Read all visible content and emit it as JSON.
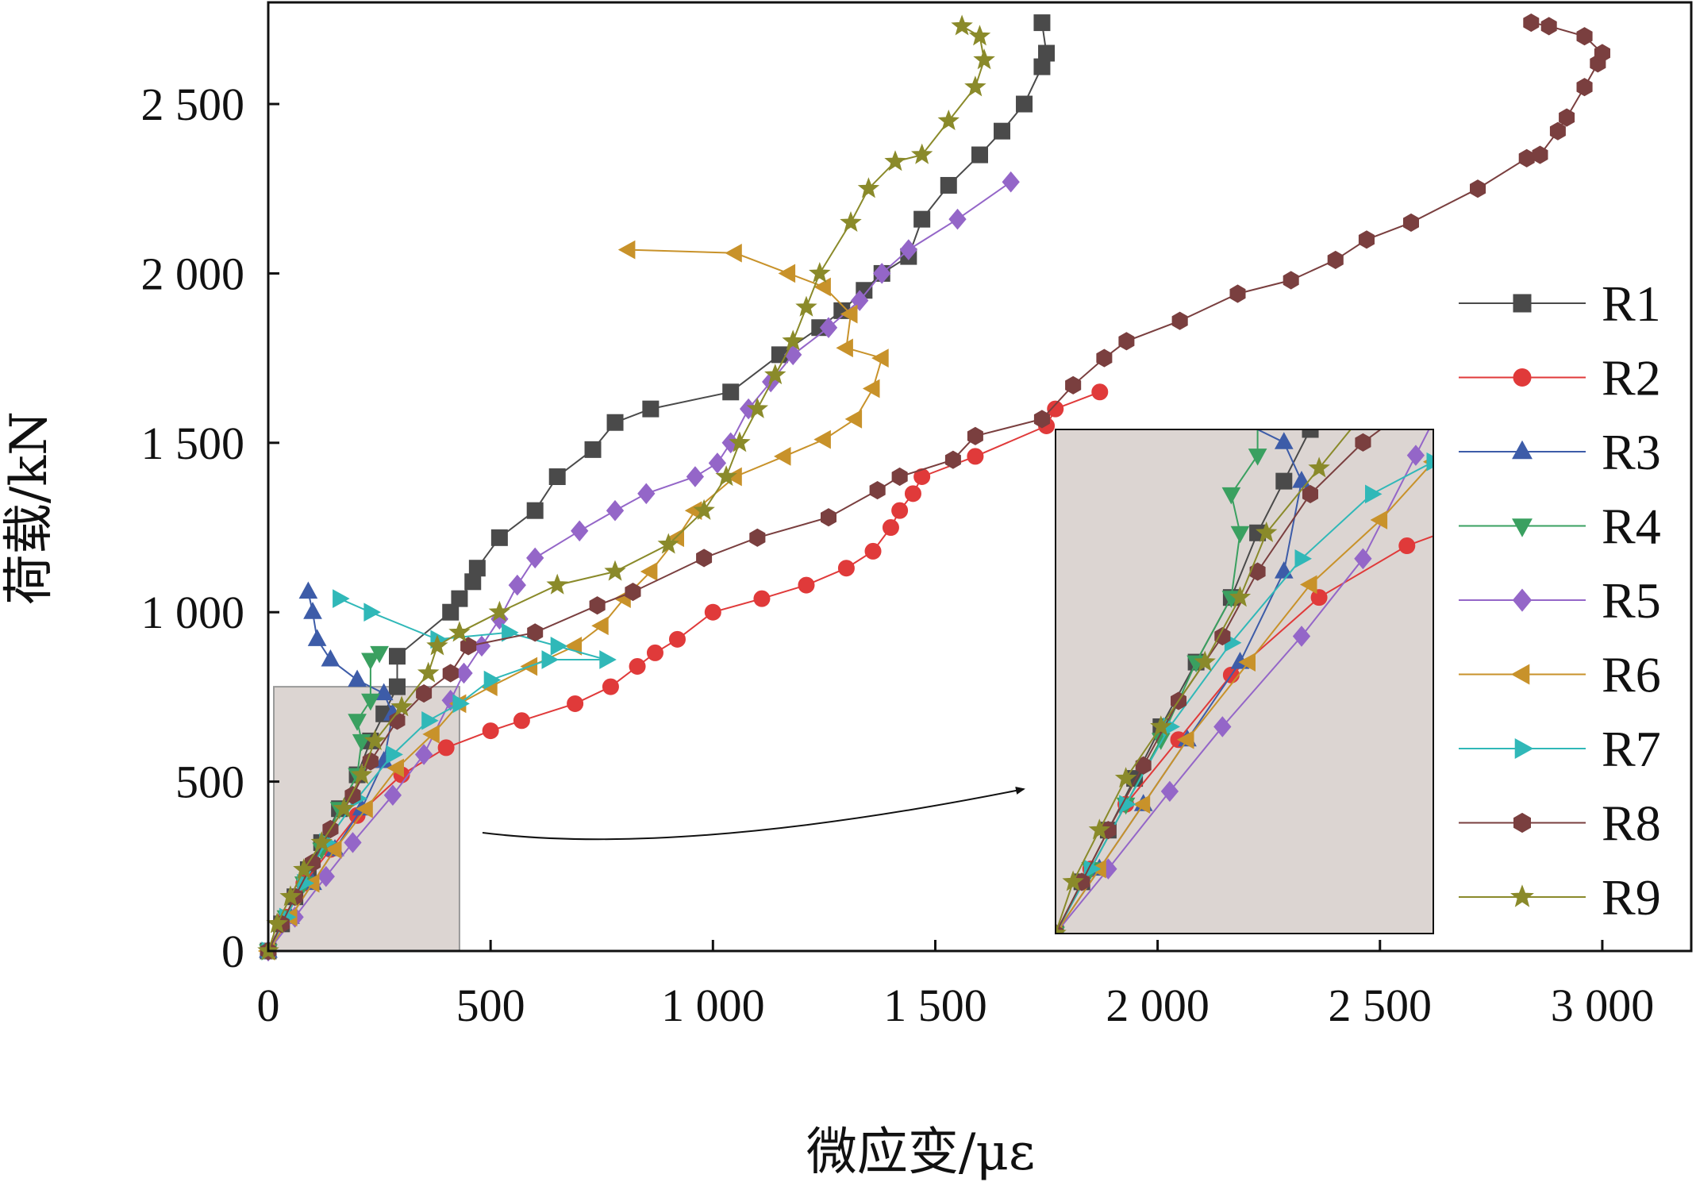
{
  "chart_data": {
    "type": "line",
    "title": "",
    "xlabel": "微应变/με",
    "ylabel": "荷载/kN",
    "xlim": [
      0,
      3200
    ],
    "ylim": [
      0,
      2800
    ],
    "xticks": [
      0,
      500,
      1000,
      1500,
      2000,
      2500,
      3000
    ],
    "xtick_labels": [
      "0",
      "500",
      "1 000",
      "1 500",
      "2 000",
      "2 500",
      "3 000"
    ],
    "yticks": [
      0,
      500,
      1000,
      1500,
      2000,
      2500
    ],
    "ytick_labels": [
      "0",
      "500",
      "1 000",
      "1 500",
      "2 000",
      "2 500"
    ],
    "grid": false,
    "legend_position": "right",
    "inset": {
      "type": "zoom",
      "source_xlim": [
        0,
        430
      ],
      "source_ylim": [
        0,
        780
      ]
    },
    "series": [
      {
        "name": "R1",
        "color": "#4a4a4a",
        "marker": "square",
        "points": [
          [
            0,
            0
          ],
          [
            30,
            80
          ],
          [
            60,
            160
          ],
          [
            90,
            240
          ],
          [
            120,
            320
          ],
          [
            160,
            420
          ],
          [
            200,
            520
          ],
          [
            230,
            620
          ],
          [
            260,
            700
          ],
          [
            290,
            780
          ],
          [
            290,
            870
          ],
          [
            410,
            1000
          ],
          [
            430,
            1040
          ],
          [
            460,
            1090
          ],
          [
            470,
            1130
          ],
          [
            520,
            1220
          ],
          [
            600,
            1300
          ],
          [
            650,
            1400
          ],
          [
            730,
            1480
          ],
          [
            780,
            1560
          ],
          [
            860,
            1600
          ],
          [
            1040,
            1650
          ],
          [
            1150,
            1760
          ],
          [
            1240,
            1840
          ],
          [
            1290,
            1890
          ],
          [
            1340,
            1950
          ],
          [
            1380,
            2000
          ],
          [
            1440,
            2050
          ],
          [
            1470,
            2160
          ],
          [
            1530,
            2260
          ],
          [
            1600,
            2350
          ],
          [
            1650,
            2420
          ],
          [
            1700,
            2500
          ],
          [
            1740,
            2610
          ],
          [
            1750,
            2650
          ],
          [
            1740,
            2740
          ]
        ]
      },
      {
        "name": "R2",
        "color": "#e03a3a",
        "marker": "circle",
        "points": [
          [
            0,
            0
          ],
          [
            40,
            100
          ],
          [
            80,
            200
          ],
          [
            140,
            300
          ],
          [
            200,
            400
          ],
          [
            300,
            520
          ],
          [
            400,
            600
          ],
          [
            500,
            650
          ],
          [
            570,
            680
          ],
          [
            690,
            730
          ],
          [
            770,
            780
          ],
          [
            830,
            840
          ],
          [
            870,
            880
          ],
          [
            920,
            920
          ],
          [
            1000,
            1000
          ],
          [
            1110,
            1040
          ],
          [
            1210,
            1080
          ],
          [
            1300,
            1130
          ],
          [
            1360,
            1180
          ],
          [
            1400,
            1250
          ],
          [
            1420,
            1300
          ],
          [
            1450,
            1350
          ],
          [
            1470,
            1400
          ],
          [
            1590,
            1460
          ],
          [
            1750,
            1550
          ],
          [
            1770,
            1600
          ],
          [
            1870,
            1650
          ]
        ]
      },
      {
        "name": "R3",
        "color": "#3d5ca8",
        "marker": "triangle-up",
        "points": [
          [
            0,
            0
          ],
          [
            50,
            100
          ],
          [
            100,
            200
          ],
          [
            150,
            300
          ],
          [
            210,
            420
          ],
          [
            260,
            560
          ],
          [
            280,
            700
          ],
          [
            260,
            760
          ],
          [
            200,
            800
          ],
          [
            140,
            860
          ],
          [
            110,
            920
          ],
          [
            100,
            1000
          ],
          [
            90,
            1060
          ]
        ]
      },
      {
        "name": "R4",
        "color": "#3aa060",
        "marker": "triangle-down",
        "points": [
          [
            0,
            0
          ],
          [
            40,
            100
          ],
          [
            80,
            200
          ],
          [
            120,
            300
          ],
          [
            160,
            420
          ],
          [
            200,
            520
          ],
          [
            210,
            620
          ],
          [
            200,
            680
          ],
          [
            230,
            740
          ],
          [
            230,
            860
          ],
          [
            250,
            880
          ]
        ]
      },
      {
        "name": "R5",
        "color": "#9466c8",
        "marker": "diamond",
        "points": [
          [
            0,
            0
          ],
          [
            60,
            100
          ],
          [
            130,
            220
          ],
          [
            190,
            320
          ],
          [
            280,
            460
          ],
          [
            350,
            580
          ],
          [
            410,
            740
          ],
          [
            440,
            820
          ],
          [
            480,
            900
          ],
          [
            520,
            980
          ],
          [
            560,
            1080
          ],
          [
            600,
            1160
          ],
          [
            700,
            1240
          ],
          [
            780,
            1300
          ],
          [
            850,
            1350
          ],
          [
            960,
            1400
          ],
          [
            1010,
            1440
          ],
          [
            1040,
            1500
          ],
          [
            1080,
            1600
          ],
          [
            1130,
            1680
          ],
          [
            1180,
            1760
          ],
          [
            1260,
            1840
          ],
          [
            1330,
            1920
          ],
          [
            1380,
            2000
          ],
          [
            1440,
            2070
          ],
          [
            1550,
            2160
          ],
          [
            1670,
            2270
          ]
        ]
      },
      {
        "name": "R6",
        "color": "#c8922a",
        "marker": "triangle-left",
        "points": [
          [
            0,
            0
          ],
          [
            50,
            100
          ],
          [
            100,
            200
          ],
          [
            150,
            300
          ],
          [
            220,
            420
          ],
          [
            290,
            540
          ],
          [
            370,
            640
          ],
          [
            430,
            730
          ],
          [
            500,
            780
          ],
          [
            590,
            840
          ],
          [
            690,
            900
          ],
          [
            750,
            960
          ],
          [
            800,
            1040
          ],
          [
            860,
            1120
          ],
          [
            920,
            1220
          ],
          [
            960,
            1300
          ],
          [
            1050,
            1400
          ],
          [
            1160,
            1460
          ],
          [
            1250,
            1510
          ],
          [
            1320,
            1570
          ],
          [
            1360,
            1660
          ],
          [
            1380,
            1750
          ],
          [
            1300,
            1780
          ],
          [
            1310,
            1880
          ],
          [
            1250,
            1960
          ],
          [
            1170,
            2000
          ],
          [
            1050,
            2060
          ],
          [
            810,
            2070
          ]
        ]
      },
      {
        "name": "R7",
        "color": "#30b8b8",
        "marker": "triangle-right",
        "points": [
          [
            0,
            0
          ],
          [
            40,
            100
          ],
          [
            80,
            200
          ],
          [
            130,
            320
          ],
          [
            200,
            450
          ],
          [
            280,
            580
          ],
          [
            360,
            680
          ],
          [
            430,
            730
          ],
          [
            500,
            800
          ],
          [
            630,
            860
          ],
          [
            760,
            860
          ],
          [
            650,
            900
          ],
          [
            540,
            940
          ],
          [
            380,
            920
          ],
          [
            230,
            1000
          ],
          [
            160,
            1040
          ]
        ]
      },
      {
        "name": "R8",
        "color": "#7a3f3f",
        "marker": "hexagon",
        "points": [
          [
            0,
            0
          ],
          [
            30,
            80
          ],
          [
            60,
            160
          ],
          [
            100,
            260
          ],
          [
            140,
            360
          ],
          [
            190,
            460
          ],
          [
            230,
            560
          ],
          [
            290,
            680
          ],
          [
            350,
            760
          ],
          [
            410,
            820
          ],
          [
            450,
            900
          ],
          [
            600,
            940
          ],
          [
            740,
            1020
          ],
          [
            820,
            1060
          ],
          [
            980,
            1160
          ],
          [
            1100,
            1220
          ],
          [
            1260,
            1280
          ],
          [
            1370,
            1360
          ],
          [
            1420,
            1400
          ],
          [
            1540,
            1450
          ],
          [
            1590,
            1520
          ],
          [
            1740,
            1570
          ],
          [
            1810,
            1670
          ],
          [
            1880,
            1750
          ],
          [
            1930,
            1800
          ],
          [
            2050,
            1860
          ],
          [
            2180,
            1940
          ],
          [
            2300,
            1980
          ],
          [
            2400,
            2040
          ],
          [
            2470,
            2100
          ],
          [
            2570,
            2150
          ],
          [
            2720,
            2250
          ],
          [
            2830,
            2340
          ],
          [
            2860,
            2350
          ],
          [
            2900,
            2420
          ],
          [
            2920,
            2460
          ],
          [
            2960,
            2550
          ],
          [
            2990,
            2620
          ],
          [
            3000,
            2650
          ],
          [
            2960,
            2700
          ],
          [
            2880,
            2730
          ],
          [
            2840,
            2740
          ]
        ]
      },
      {
        "name": "R9",
        "color": "#8a8a2a",
        "marker": "star",
        "points": [
          [
            0,
            0
          ],
          [
            20,
            80
          ],
          [
            50,
            160
          ],
          [
            80,
            240
          ],
          [
            120,
            320
          ],
          [
            170,
            420
          ],
          [
            210,
            520
          ],
          [
            240,
            620
          ],
          [
            300,
            720
          ],
          [
            360,
            820
          ],
          [
            380,
            900
          ],
          [
            430,
            940
          ],
          [
            520,
            1000
          ],
          [
            650,
            1080
          ],
          [
            780,
            1120
          ],
          [
            900,
            1200
          ],
          [
            980,
            1300
          ],
          [
            1030,
            1400
          ],
          [
            1060,
            1500
          ],
          [
            1100,
            1600
          ],
          [
            1140,
            1700
          ],
          [
            1180,
            1800
          ],
          [
            1210,
            1900
          ],
          [
            1240,
            2000
          ],
          [
            1310,
            2150
          ],
          [
            1350,
            2250
          ],
          [
            1410,
            2330
          ],
          [
            1470,
            2350
          ],
          [
            1530,
            2450
          ],
          [
            1590,
            2550
          ],
          [
            1610,
            2630
          ],
          [
            1600,
            2700
          ],
          [
            1560,
            2730
          ]
        ]
      }
    ]
  }
}
